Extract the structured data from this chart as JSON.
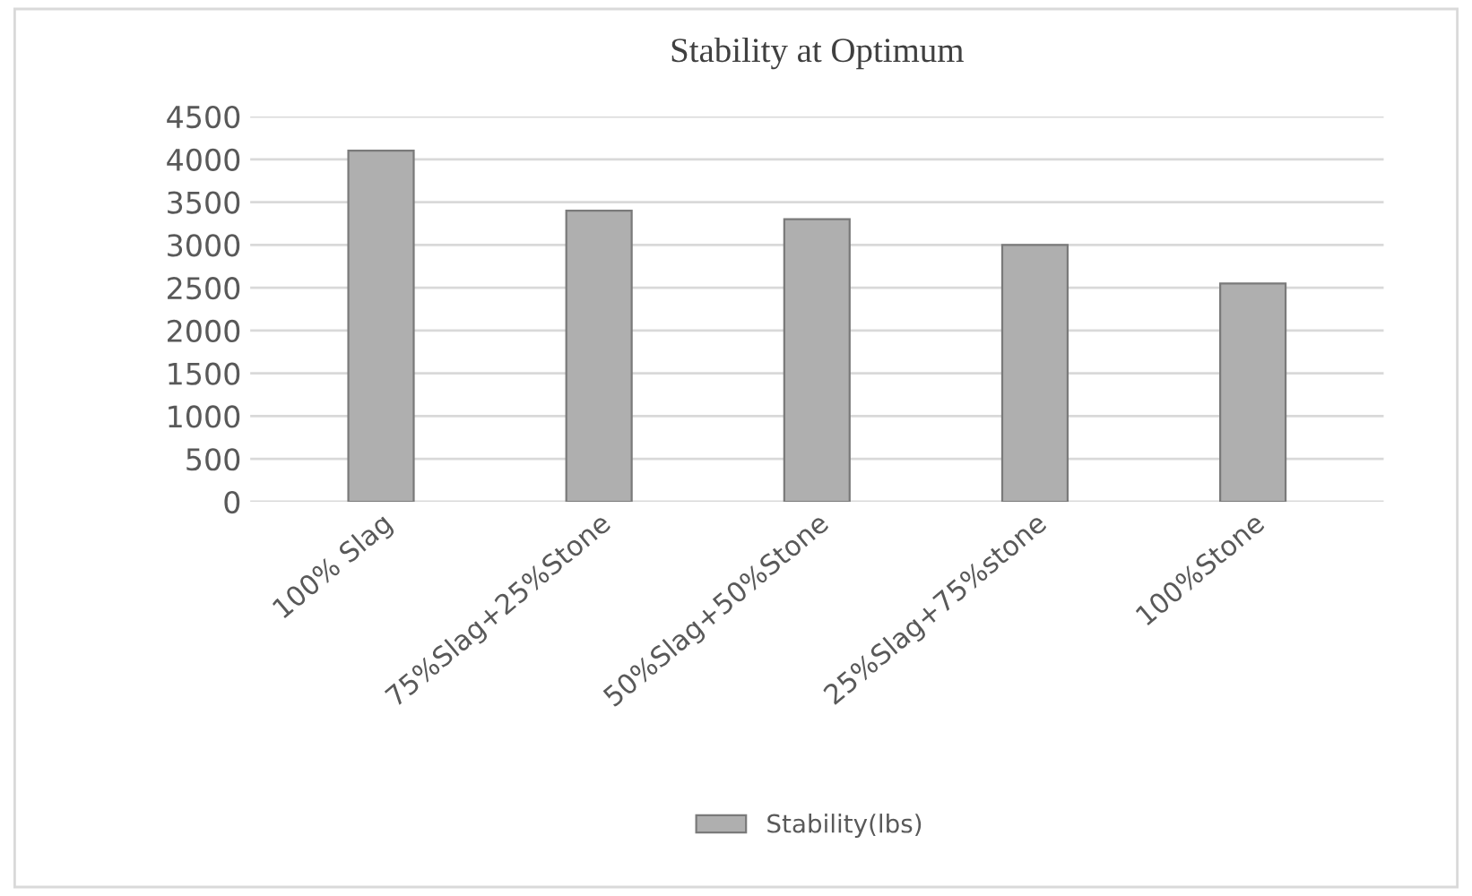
{
  "chart_data": {
    "type": "bar",
    "title": "Stability at Optimum",
    "categories": [
      "100% Slag",
      "75%Slag+25%Stone",
      "50%Slag+50%Stone",
      "25%Slag+75%stone",
      "100%Stone"
    ],
    "series": [
      {
        "name": "Stability(lbs)",
        "color": "#afafaf",
        "values": [
          4100,
          3400,
          3300,
          3000,
          2550
        ]
      }
    ],
    "ylim": [
      0,
      4500
    ],
    "yticks": [
      0,
      500,
      1000,
      1500,
      2000,
      2500,
      3000,
      3500,
      4000,
      4500
    ],
    "grid": "y",
    "legend": "bottom"
  }
}
